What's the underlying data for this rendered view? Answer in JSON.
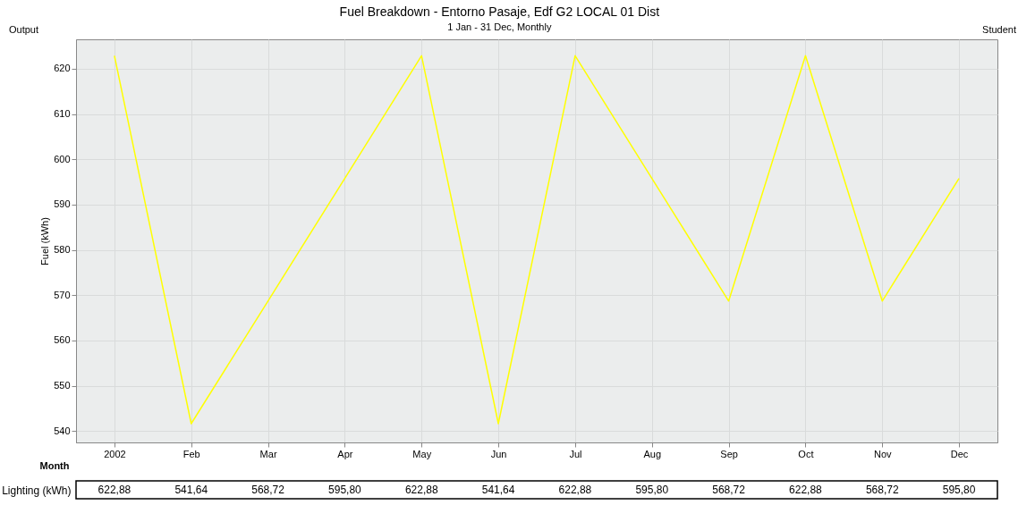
{
  "chart_data": {
    "type": "line",
    "title": "Fuel Breakdown - Entorno Pasaje, Edf G2 LOCAL 01 Dist",
    "subtitle": "1 Jan - 31 Dec, Monthly",
    "xlabel": "Month",
    "ylabel": "Fuel (kWh)",
    "annotations": [
      "Output",
      "Student"
    ],
    "categories": [
      "2002",
      "Feb",
      "Mar",
      "Apr",
      "May",
      "Jun",
      "Jul",
      "Aug",
      "Sep",
      "Oct",
      "Nov",
      "Dec"
    ],
    "series": [
      {
        "name": "Lighting (kWh)",
        "color": "#ffff00",
        "values": [
          622.88,
          541.64,
          568.72,
          595.8,
          622.88,
          541.64,
          622.88,
          595.8,
          568.72,
          622.88,
          568.72,
          595.8
        ],
        "value_labels": [
          "622,88",
          "541,64",
          "568,72",
          "595,80",
          "622,88",
          "541,64",
          "622,88",
          "595,80",
          "568,72",
          "622,88",
          "568,72",
          "595,80"
        ]
      }
    ],
    "ylim": [
      537.5,
      626.5
    ],
    "yticks": [
      540,
      550,
      560,
      570,
      580,
      590,
      600,
      610,
      620
    ],
    "grid": true,
    "marker": "none",
    "line_style": "solid"
  }
}
